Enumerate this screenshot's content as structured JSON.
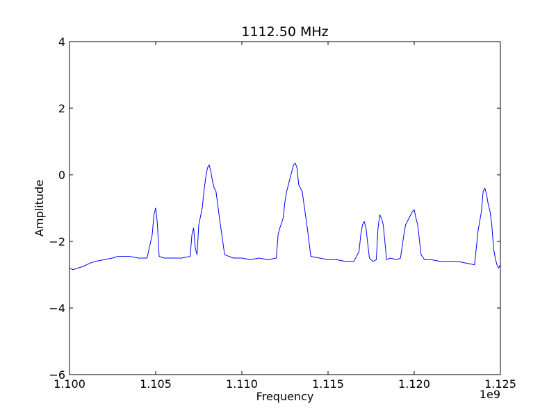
{
  "chart_data": {
    "type": "line",
    "title": "1112.50 MHz",
    "xlabel": "Frequency",
    "ylabel": "Amplitude",
    "x_offset_label": "1e9",
    "xlim": [
      1.1,
      1.125
    ],
    "ylim": [
      -6,
      4
    ],
    "x_ticks": [
      1.1,
      1.105,
      1.11,
      1.115,
      1.12,
      1.125
    ],
    "x_tick_labels": [
      "1.100",
      "1.105",
      "1.110",
      "1.115",
      "1.120",
      "1.125"
    ],
    "y_ticks": [
      -6,
      -4,
      -2,
      0,
      2,
      4
    ],
    "y_tick_labels": [
      "−6",
      "−4",
      "−2",
      "0",
      "2",
      "4"
    ],
    "grid": false,
    "series": [
      {
        "color": "#0000ff",
        "x": [
          1.1,
          1.1002,
          1.1005,
          1.1008,
          1.101,
          1.1012,
          1.1015,
          1.102,
          1.1025,
          1.1028,
          1.103,
          1.1035,
          1.104,
          1.1045,
          1.1048,
          1.1049,
          1.105,
          1.10505,
          1.1051,
          1.1052,
          1.1055,
          1.106,
          1.1065,
          1.107,
          1.1071,
          1.1072,
          1.1073,
          1.1074,
          1.1075,
          1.1077,
          1.1078,
          1.1079,
          1.108,
          1.1081,
          1.1082,
          1.1083,
          1.1084,
          1.1085,
          1.1086,
          1.1087,
          1.109,
          1.1095,
          1.11,
          1.1105,
          1.111,
          1.1115,
          1.112,
          1.1121,
          1.1122,
          1.1124,
          1.1125,
          1.1126,
          1.1128,
          1.113,
          1.1131,
          1.1132,
          1.1133,
          1.1134,
          1.1135,
          1.1138,
          1.114,
          1.1145,
          1.115,
          1.1155,
          1.116,
          1.1165,
          1.1168,
          1.1169,
          1.117,
          1.1171,
          1.1172,
          1.1174,
          1.1176,
          1.1178,
          1.1179,
          1.118,
          1.1181,
          1.1182,
          1.1184,
          1.1186,
          1.119,
          1.1192,
          1.1194,
          1.1195,
          1.1197,
          1.1199,
          1.12,
          1.1201,
          1.1202,
          1.1204,
          1.1206,
          1.121,
          1.1215,
          1.122,
          1.1225,
          1.123,
          1.1235,
          1.1236,
          1.1237,
          1.1238,
          1.1239,
          1.124,
          1.1241,
          1.1242,
          1.1243,
          1.1244,
          1.1245,
          1.1246,
          1.1247,
          1.1248,
          1.1249,
          1.125
        ],
        "y": [
          -2.8,
          -2.85,
          -2.8,
          -2.75,
          -2.7,
          -2.65,
          -2.6,
          -2.55,
          -2.5,
          -2.45,
          -2.45,
          -2.45,
          -2.5,
          -2.5,
          -1.8,
          -1.2,
          -1.0,
          -1.2,
          -1.5,
          -2.45,
          -2.5,
          -2.5,
          -2.5,
          -2.45,
          -1.8,
          -1.6,
          -2.2,
          -2.4,
          -1.5,
          -1.0,
          -0.5,
          -0.1,
          0.2,
          0.3,
          0.1,
          -0.2,
          -0.4,
          -0.5,
          -0.9,
          -1.3,
          -2.4,
          -2.5,
          -2.5,
          -2.55,
          -2.5,
          -2.55,
          -2.5,
          -1.8,
          -1.6,
          -1.3,
          -0.8,
          -0.5,
          -0.1,
          0.3,
          0.35,
          0.2,
          -0.3,
          -0.4,
          -0.5,
          -1.6,
          -2.45,
          -2.5,
          -2.55,
          -2.55,
          -2.6,
          -2.6,
          -2.3,
          -1.8,
          -1.5,
          -1.4,
          -1.6,
          -2.5,
          -2.6,
          -2.55,
          -1.6,
          -1.2,
          -1.3,
          -1.5,
          -2.55,
          -2.5,
          -2.55,
          -2.5,
          -1.8,
          -1.5,
          -1.3,
          -1.1,
          -1.05,
          -1.3,
          -1.5,
          -2.4,
          -2.55,
          -2.55,
          -2.6,
          -2.6,
          -2.6,
          -2.65,
          -2.7,
          -2.2,
          -1.7,
          -1.4,
          -1.1,
          -0.5,
          -0.4,
          -0.6,
          -0.9,
          -1.1,
          -1.5,
          -2.2,
          -2.5,
          -2.7,
          -2.8,
          -2.7
        ]
      }
    ]
  }
}
